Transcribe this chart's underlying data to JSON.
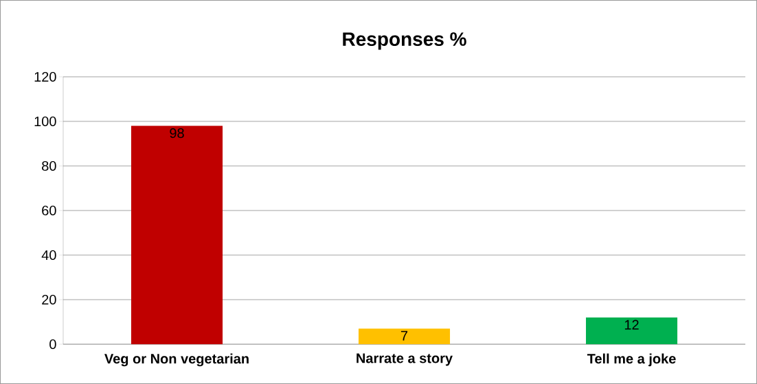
{
  "chart_data": {
    "type": "bar",
    "title": "Responses %",
    "categories": [
      "Veg or Non vegetarian",
      "Narrate a story",
      "Tell me a joke"
    ],
    "values": [
      98,
      7,
      12
    ],
    "colors": [
      "#c00000",
      "#ffc000",
      "#00b050"
    ],
    "ylim": [
      0,
      120
    ],
    "yticks": [
      0,
      20,
      40,
      60,
      80,
      100,
      120
    ],
    "grid": "y",
    "data_labels": true
  }
}
